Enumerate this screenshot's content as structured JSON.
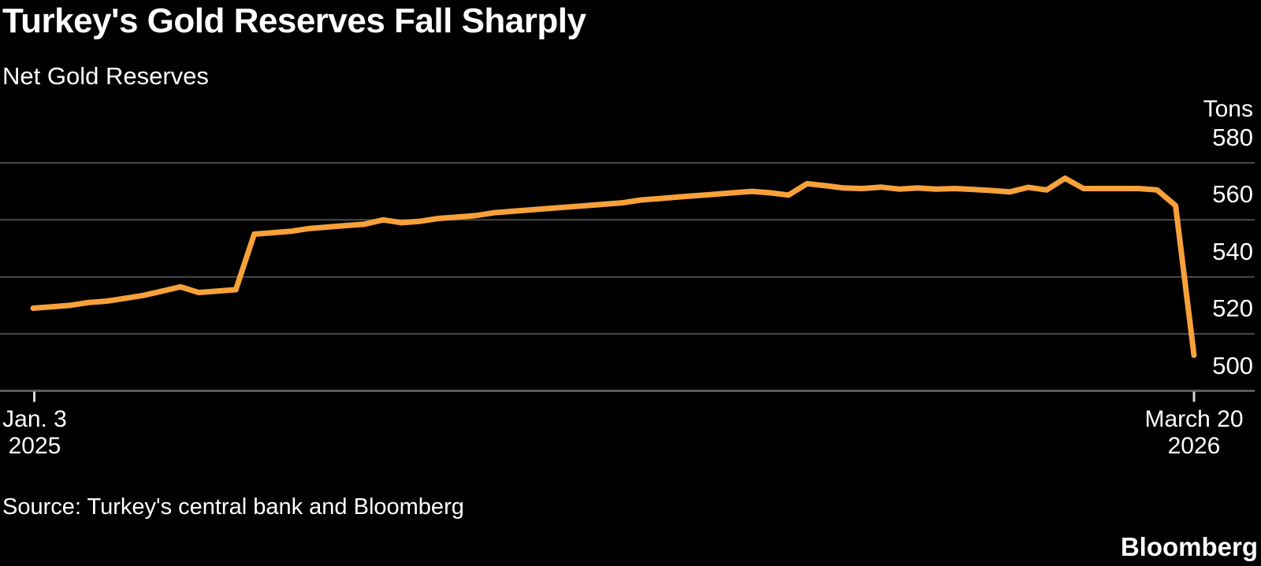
{
  "header": {
    "title": "Turkey's Gold Reserves Fall Sharply",
    "subtitle": "Net Gold Reserves"
  },
  "chart_data": {
    "type": "line",
    "title": "Net Gold Reserves",
    "unit_label": "Tons",
    "legend": "none",
    "grid": "horizontal",
    "y_axis_side": "right",
    "yticks": [
      580,
      560,
      540,
      520,
      500
    ],
    "ylim": [
      500,
      585
    ],
    "x_start_label": [
      "Jan. 3",
      "2025"
    ],
    "x_end_label": [
      "March 20",
      "2026"
    ],
    "x_frequency": "weekly",
    "values": [
      529,
      529.5,
      530,
      531,
      531.5,
      532.5,
      533.5,
      535,
      536.5,
      534.5,
      535,
      535.5,
      555,
      555.5,
      556,
      557,
      557.5,
      558,
      558.5,
      560,
      559,
      559.5,
      560.5,
      561,
      561.5,
      562.5,
      563,
      563.5,
      564,
      564.5,
      565,
      565.5,
      566,
      567,
      567.5,
      568,
      568.5,
      569,
      569.5,
      570,
      569.5,
      568.7,
      572.7,
      572,
      571.2,
      571,
      571.5,
      570.8,
      571.2,
      570.8,
      571,
      570.7,
      570.3,
      569.8,
      571.4,
      570.5,
      574.6,
      571,
      571,
      571,
      571,
      570.5,
      565,
      512.5
    ]
  },
  "footer": {
    "source": "Source: Turkey's central bank and Bloomberg",
    "credit": "Bloomberg"
  },
  "colors": {
    "background": "#000000",
    "line": "#F7A13A",
    "grid": "#4b4b4b",
    "baseline": "#5a5a5a",
    "tick": "#d9d9d9",
    "text": "#ffffff"
  }
}
